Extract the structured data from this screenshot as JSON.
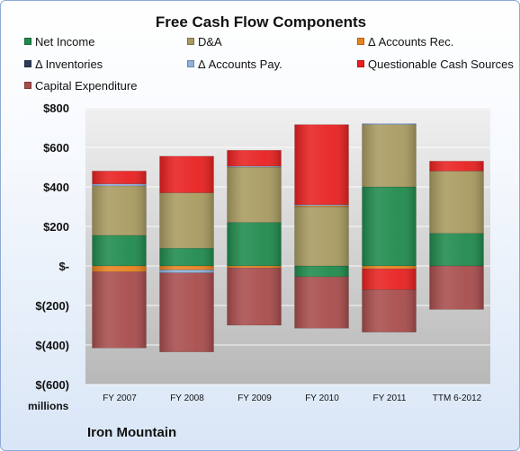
{
  "chart_data": {
    "type": "bar",
    "stacked": true,
    "title": "Free Cash Flow Components",
    "xlabel": "",
    "ylabel": "",
    "units_label": "millions",
    "company": "Iron Mountain",
    "categories": [
      "FY 2007",
      "FY 2008",
      "FY 2009",
      "FY 2010",
      "FY 2011",
      "TTM 6-2012"
    ],
    "ylim": [
      -600,
      800
    ],
    "yticks": [
      {
        "value": 800,
        "label": "$800"
      },
      {
        "value": 600,
        "label": "$600"
      },
      {
        "value": 400,
        "label": "$400"
      },
      {
        "value": 200,
        "label": "$200"
      },
      {
        "value": 0,
        "label": "$-"
      },
      {
        "value": -200,
        "label": "$(200)"
      },
      {
        "value": -400,
        "label": "$(400)"
      },
      {
        "value": -600,
        "label": "$(600)"
      }
    ],
    "grid": true,
    "legend_position": "top",
    "series": [
      {
        "name": "Net Income",
        "color": "#1f8a4c",
        "values": [
          155,
          90,
          220,
          -55,
          400,
          165
        ]
      },
      {
        "name": "D&A",
        "color": "#a89a60",
        "values": [
          250,
          280,
          280,
          300,
          315,
          315
        ]
      },
      {
        "name": "Δ Accounts Rec.",
        "color": "#e8821e",
        "values": [
          -30,
          -20,
          -10,
          5,
          -15,
          0
        ]
      },
      {
        "name": "Δ Inventories",
        "color": "#2b3d5a",
        "values": [
          0,
          0,
          0,
          0,
          0,
          0
        ]
      },
      {
        "name": "Δ Accounts Pay.",
        "color": "#8fb0dc",
        "values": [
          10,
          -15,
          5,
          5,
          5,
          0
        ]
      },
      {
        "name": "Questionable Cash Sources",
        "color": "#e82020",
        "values": [
          65,
          185,
          80,
          405,
          -105,
          50
        ]
      },
      {
        "name": "Capital Expenditure",
        "color": "#a84c4c",
        "values": [
          -385,
          -400,
          -290,
          -260,
          -215,
          -220
        ]
      }
    ]
  }
}
